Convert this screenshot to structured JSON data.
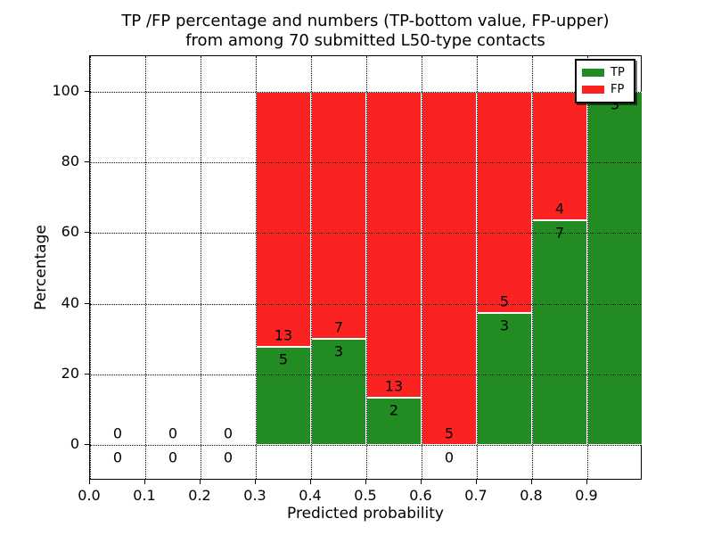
{
  "title": {
    "line1": "TP /FP percentage and numbers (TP-bottom value, FP-upper)",
    "line2": "from among 70 submitted L50-type contacts"
  },
  "axes": {
    "xlabel": "Predicted probability",
    "ylabel": "Percentage"
  },
  "legend": {
    "items": [
      {
        "label": "TP",
        "color": "#228b22"
      },
      {
        "label": "FP",
        "color": "#fb2222"
      }
    ],
    "position": "upper right"
  },
  "colors": {
    "tp_green": "#228b22",
    "fp_red": "#fb2222",
    "grid": "#000000",
    "background": "#ffffff"
  },
  "chart_data": {
    "type": "bar",
    "stacked": true,
    "title": "TP /FP percentage and numbers (TP-bottom value, FP-upper)\nfrom among 70 submitted L50-type contacts",
    "xlabel": "Predicted probability",
    "ylabel": "Percentage",
    "xlim": [
      0.0,
      1.0
    ],
    "ylim": [
      -10,
      110
    ],
    "grid": "dotted",
    "legend_position": "upper right",
    "total_contacts": 70,
    "x_tick_values": [
      0.0,
      0.1,
      0.2,
      0.3,
      0.4,
      0.5,
      0.6,
      0.7,
      0.8,
      0.9
    ],
    "x_tick_labels": [
      "0.0",
      "0.1",
      "0.2",
      "0.3",
      "0.4",
      "0.5",
      "0.6",
      "0.7",
      "0.8",
      "0.9"
    ],
    "y_tick_values": [
      0,
      20,
      40,
      60,
      80,
      100
    ],
    "y_tick_labels": [
      "0",
      "20",
      "40",
      "60",
      "80",
      "100"
    ],
    "series": [
      {
        "name": "TP",
        "color": "#228b22"
      },
      {
        "name": "FP",
        "color": "#fb2222"
      }
    ],
    "bins": [
      {
        "x0": 0.0,
        "x1": 0.1,
        "tp_count": 0,
        "fp_count": 0,
        "tp_pct": 0,
        "fp_pct": 0
      },
      {
        "x0": 0.1,
        "x1": 0.2,
        "tp_count": 0,
        "fp_count": 0,
        "tp_pct": 0,
        "fp_pct": 0
      },
      {
        "x0": 0.2,
        "x1": 0.3,
        "tp_count": 0,
        "fp_count": 0,
        "tp_pct": 0,
        "fp_pct": 0
      },
      {
        "x0": 0.3,
        "x1": 0.4,
        "tp_count": 5,
        "fp_count": 13,
        "tp_pct": 27.78,
        "fp_pct": 72.22
      },
      {
        "x0": 0.4,
        "x1": 0.5,
        "tp_count": 3,
        "fp_count": 7,
        "tp_pct": 30,
        "fp_pct": 70
      },
      {
        "x0": 0.5,
        "x1": 0.6,
        "tp_count": 2,
        "fp_count": 13,
        "tp_pct": 13.33,
        "fp_pct": 86.67
      },
      {
        "x0": 0.6,
        "x1": 0.7,
        "tp_count": 0,
        "fp_count": 5,
        "tp_pct": 0,
        "fp_pct": 100
      },
      {
        "x0": 0.7,
        "x1": 0.8,
        "tp_count": 3,
        "fp_count": 5,
        "tp_pct": 37.5,
        "fp_pct": 62.5
      },
      {
        "x0": 0.8,
        "x1": 0.9,
        "tp_count": 7,
        "fp_count": 4,
        "tp_pct": 63.64,
        "fp_pct": 36.36
      },
      {
        "x0": 0.9,
        "x1": 1.0,
        "tp_count": 3,
        "fp_count": 0,
        "tp_pct": 100,
        "fp_pct": 0
      }
    ]
  }
}
